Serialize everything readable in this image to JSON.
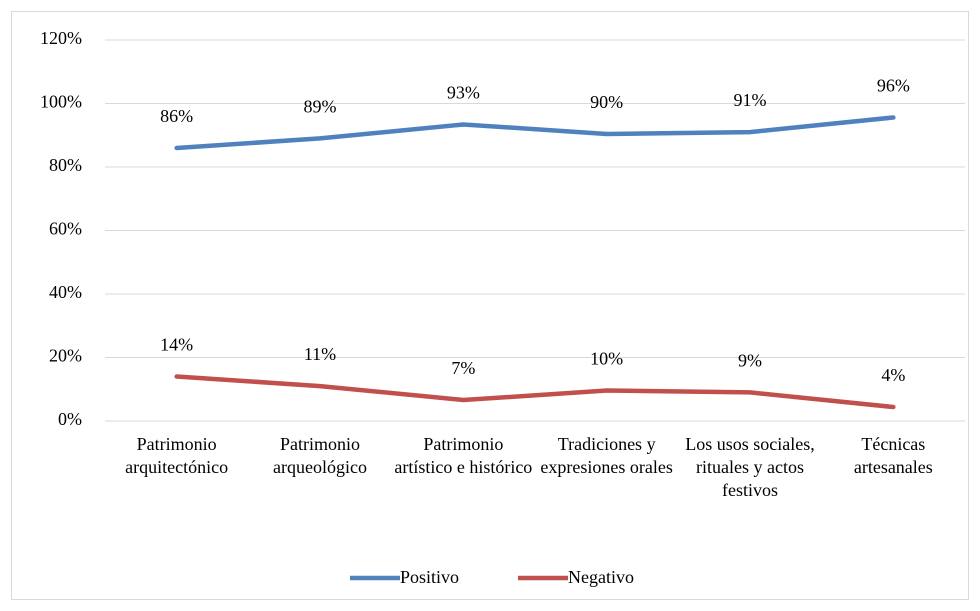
{
  "chart_data": {
    "type": "line",
    "categories": [
      "Patrimonio arquitectónico",
      "Patrimonio arqueológico",
      "Patrimonio artístico e histórico",
      "Tradiciones y expresiones orales",
      "Los usos sociales, rituales y actos festivos",
      "Técnicas artesanales"
    ],
    "series": [
      {
        "name": "Positivo",
        "color": "#4f81bd",
        "values": [
          86,
          89,
          93.4,
          90.4,
          91,
          95.6
        ],
        "value_labels": [
          "86%",
          "89%",
          "93%",
          "90%",
          "91%",
          "96%"
        ]
      },
      {
        "name": "Negativo",
        "color": "#c0504d",
        "values": [
          14,
          11,
          6.6,
          9.6,
          9,
          4.4
        ],
        "value_labels": [
          "14%",
          "11%",
          "7%",
          "10%",
          "9%",
          "4%"
        ]
      }
    ],
    "ylim": [
      0,
      120
    ],
    "yticks": [
      {
        "value": 0,
        "label": "0%"
      },
      {
        "value": 20,
        "label": "20%"
      },
      {
        "value": 40,
        "label": "40%"
      },
      {
        "value": 60,
        "label": "60%"
      },
      {
        "value": 80,
        "label": "80%"
      },
      {
        "value": 100,
        "label": "100%"
      },
      {
        "value": 120,
        "label": "120%"
      }
    ],
    "grid": true,
    "legend": "bottom"
  }
}
